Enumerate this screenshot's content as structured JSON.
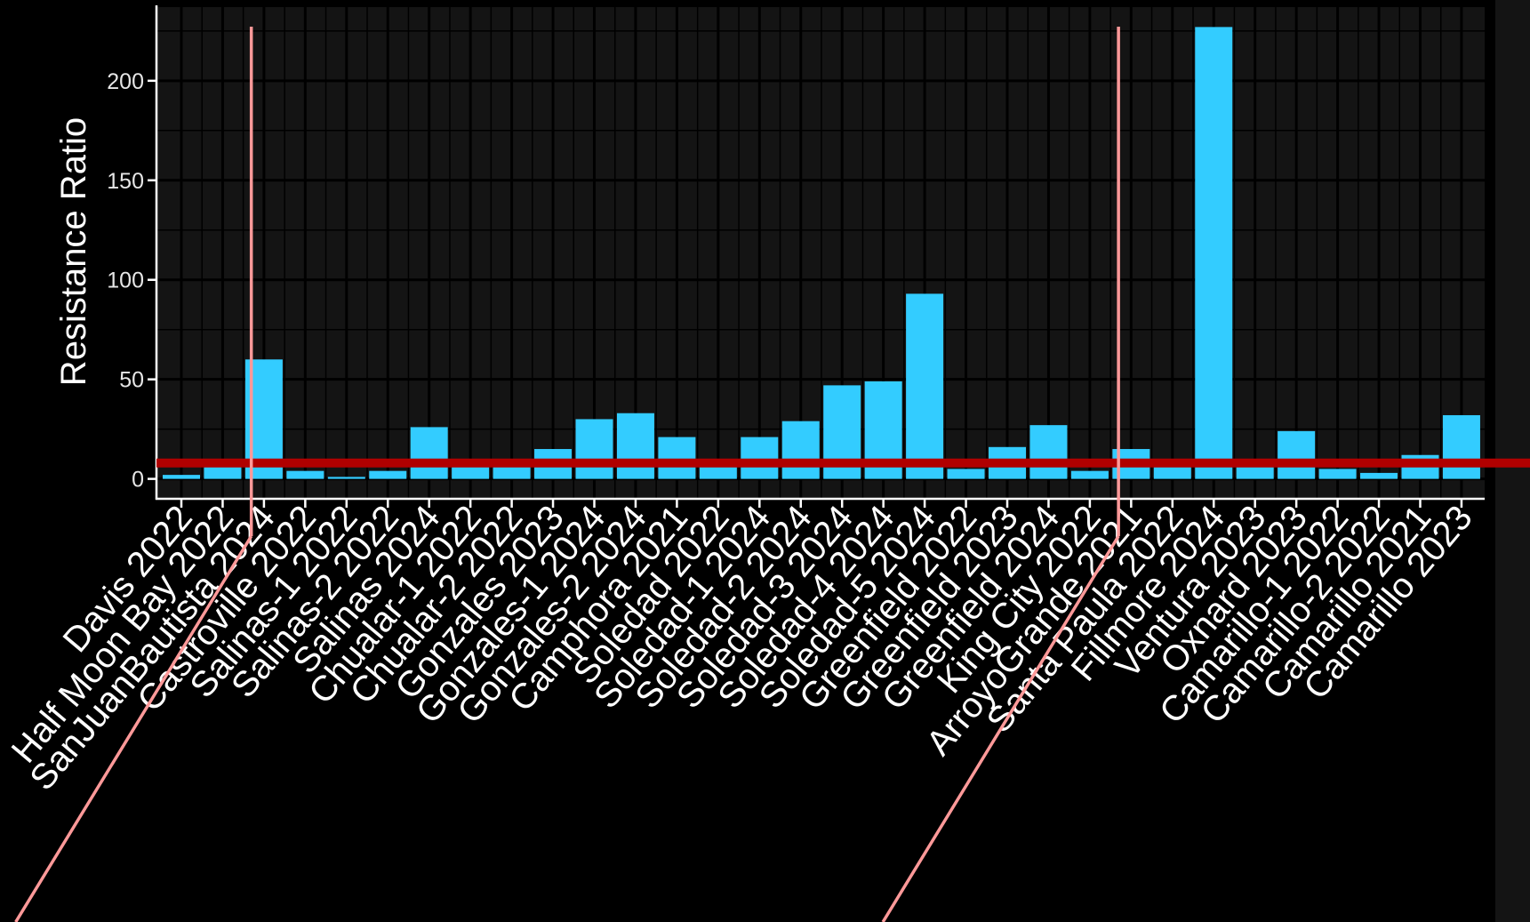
{
  "chart_data": {
    "type": "bar",
    "ylabel": "Resistance Ratio",
    "ylim": [
      -10,
      237
    ],
    "yticks": [
      0,
      50,
      100,
      150,
      200
    ],
    "grid": true,
    "categories": [
      "Davis 2022",
      "Half Moon Bay 2022",
      "SanJuanBautista 2024",
      "Castroville 2022",
      "Salinas-1 2022",
      "Salinas-2 2022",
      "Salinas 2024",
      "Chualar-1 2022",
      "Chualar-2 2022",
      "Gonzales 2023",
      "Gonzales-1 2024",
      "Gonzales-2 2024",
      "Camphora 2021",
      "Soledad 2022",
      "Soledad-1 2024",
      "Soledad-2 2024",
      "Soledad-3 2024",
      "Soledad-4 2024",
      "Soledad-5 2024",
      "Greenfield 2022",
      "Greenfield 2023",
      "Greenfield 2024",
      "King City 2022",
      "ArroyoGrande 2021",
      "Santa Paula 2022",
      "Fillmore 2024",
      "Ventura 2023",
      "Oxnard 2023",
      "Camarillo-1 2022",
      "Camarillo-2 2022",
      "Camarillo 2021",
      "Camarillo 2023"
    ],
    "values": [
      2,
      6,
      60,
      4,
      1,
      4,
      26,
      6,
      6,
      15,
      30,
      33,
      21,
      7,
      21,
      29,
      47,
      49,
      93,
      5,
      16,
      27,
      4,
      15,
      6,
      227,
      6,
      24,
      5,
      3,
      12,
      32
    ],
    "reference_hline": 8,
    "reference_vlines_after_index": [
      1,
      22
    ],
    "colors": {
      "bar": "#33CCFF",
      "panel": "#141414",
      "grid": "#000000",
      "axis": "#FFFFFF",
      "hline": "#B00000",
      "vline": "#FF9999"
    }
  }
}
